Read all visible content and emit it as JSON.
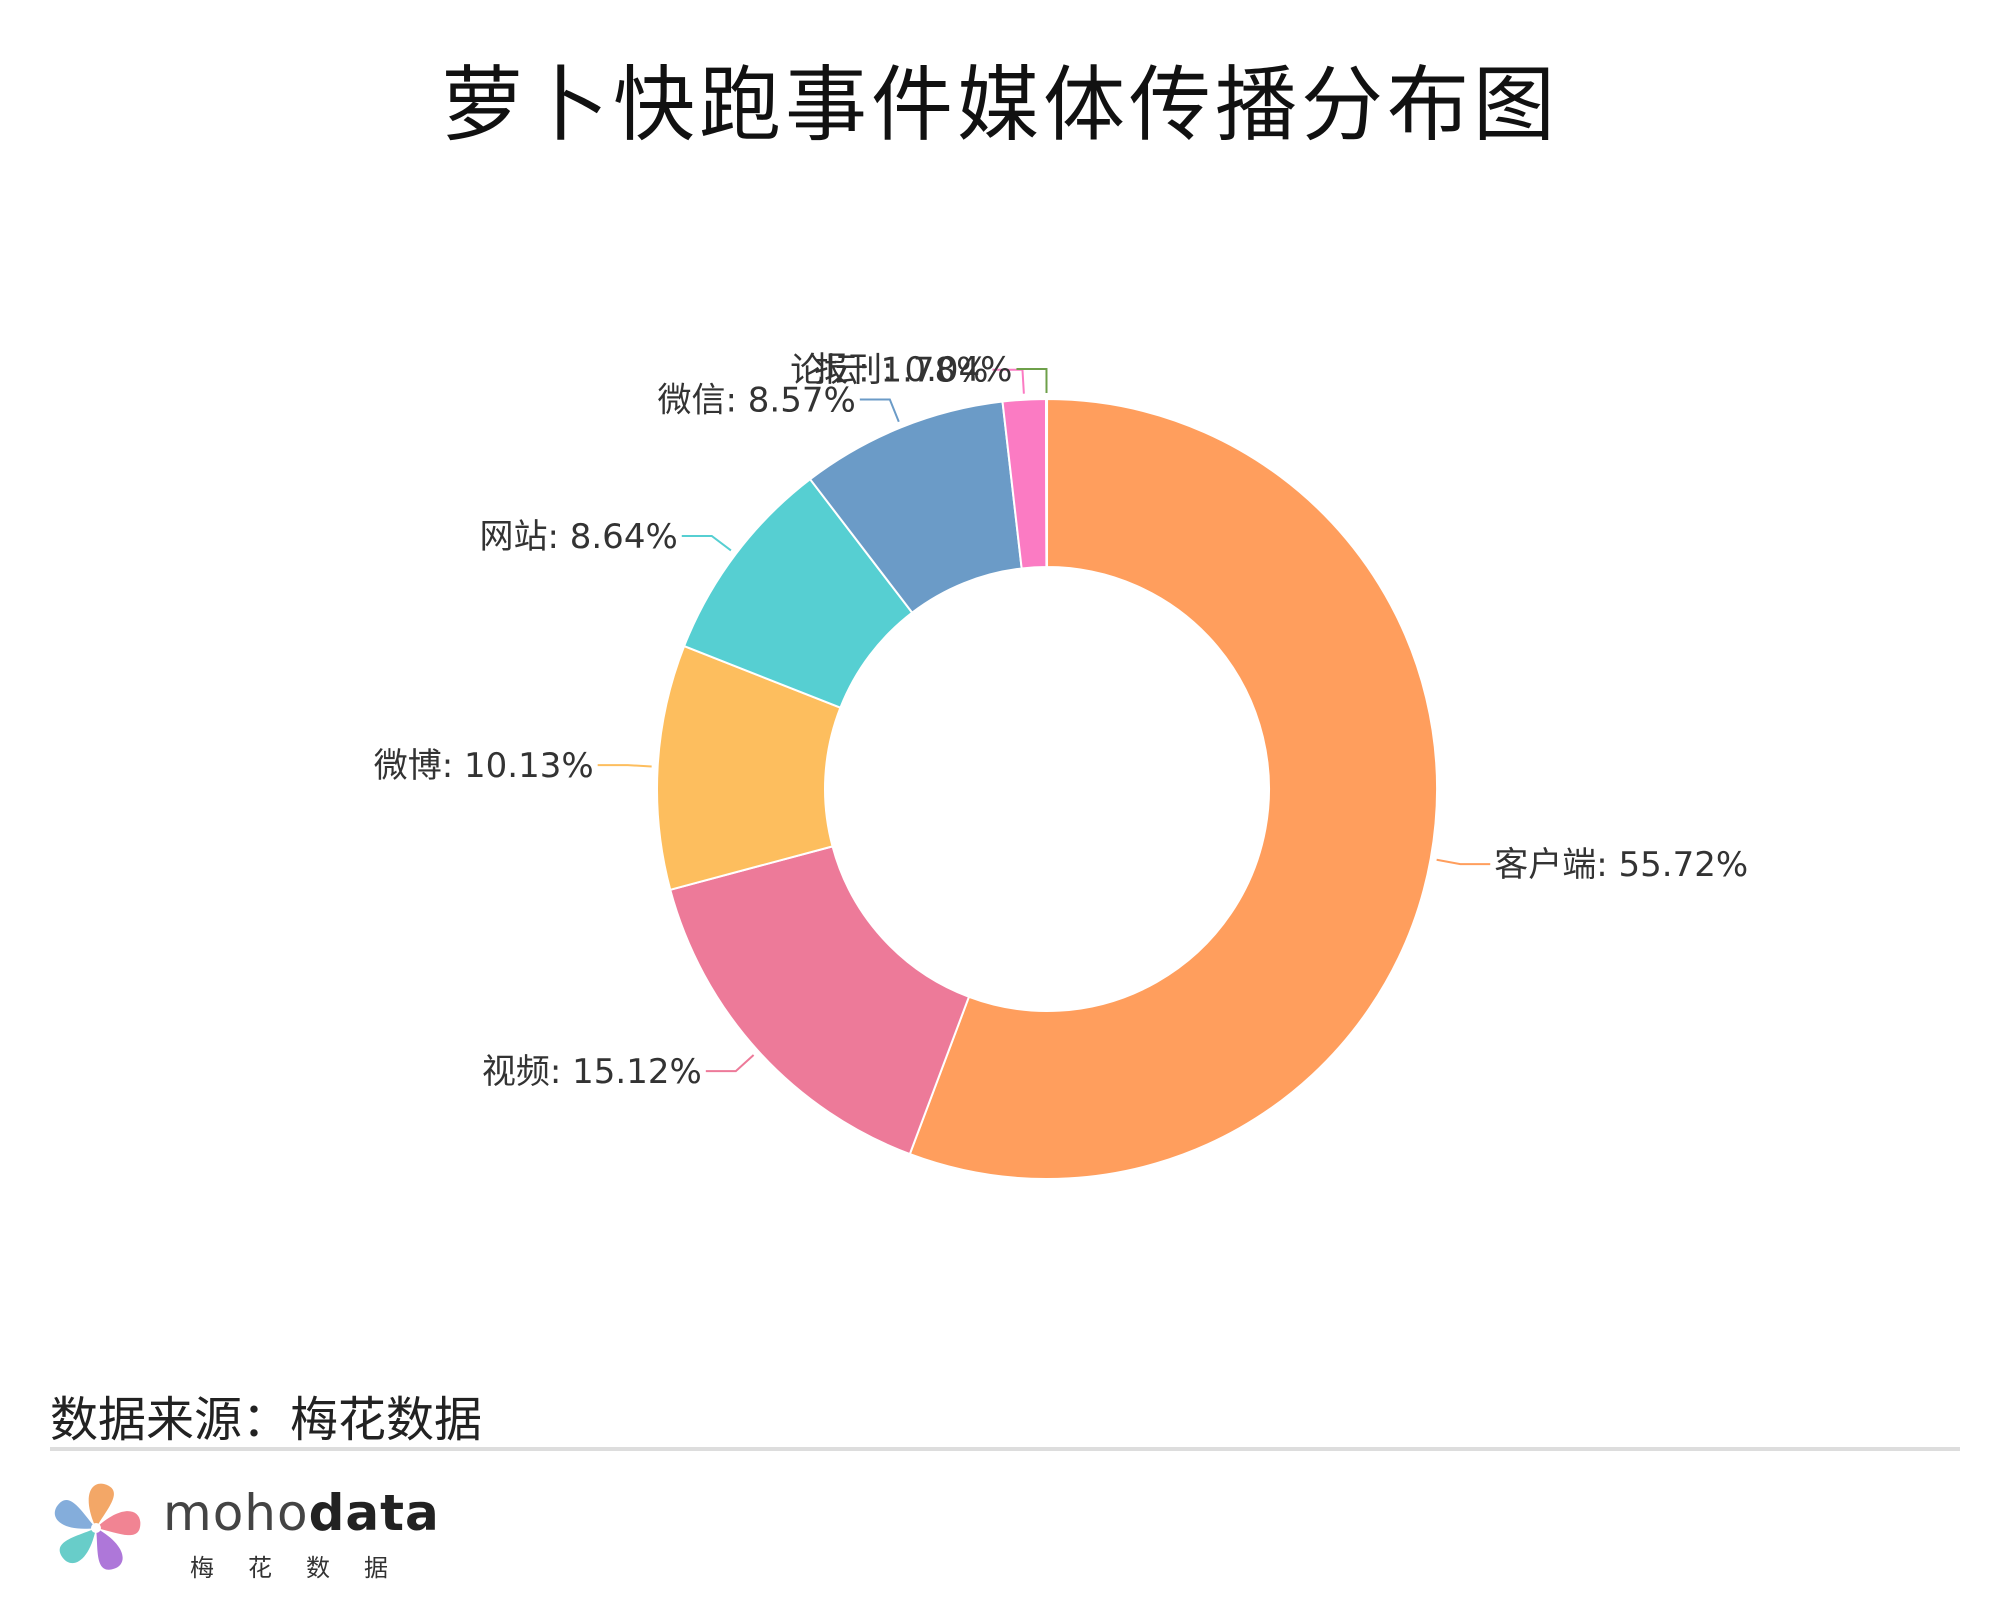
{
  "title": "萝卜快跑事件媒体传播分布图",
  "source": "数据来源：梅花数据",
  "brand": {
    "name_light": "moho",
    "name_bold": "data",
    "name_cn": "梅花数据",
    "logo_icon": "pinwheel-icon",
    "logo_colors": [
      "#f2a05a",
      "#f07a8a",
      "#a76bd6",
      "#5bc9c4",
      "#7aa6d8"
    ]
  },
  "chart_data": {
    "type": "pie",
    "donut": true,
    "title": "萝卜快跑事件媒体传播分布图",
    "start_angle_deg": 0,
    "direction": "clockwise",
    "slices": [
      {
        "label": "客户端: 55.72%",
        "name": "客户端",
        "value": 55.72,
        "color": "#ff9e5d"
      },
      {
        "label": "视频: 15.12%",
        "name": "视频",
        "value": 15.12,
        "color": "#ed7a99"
      },
      {
        "label": "微博: 10.13%",
        "name": "微博",
        "value": 10.13,
        "color": "#fdbe5e"
      },
      {
        "label": "网站: 8.64%",
        "name": "网站",
        "value": 8.64,
        "color": "#56cfd2"
      },
      {
        "label": "微信: 8.57%",
        "name": "微信",
        "value": 8.57,
        "color": "#6b9bc7"
      },
      {
        "label": "论坛: 1.78%",
        "name": "论坛",
        "value": 1.78,
        "color": "#fb7bc3"
      },
      {
        "label": "报刊: 0.04%",
        "name": "报刊",
        "value": 0.04,
        "color": "#6ea04a"
      }
    ]
  }
}
